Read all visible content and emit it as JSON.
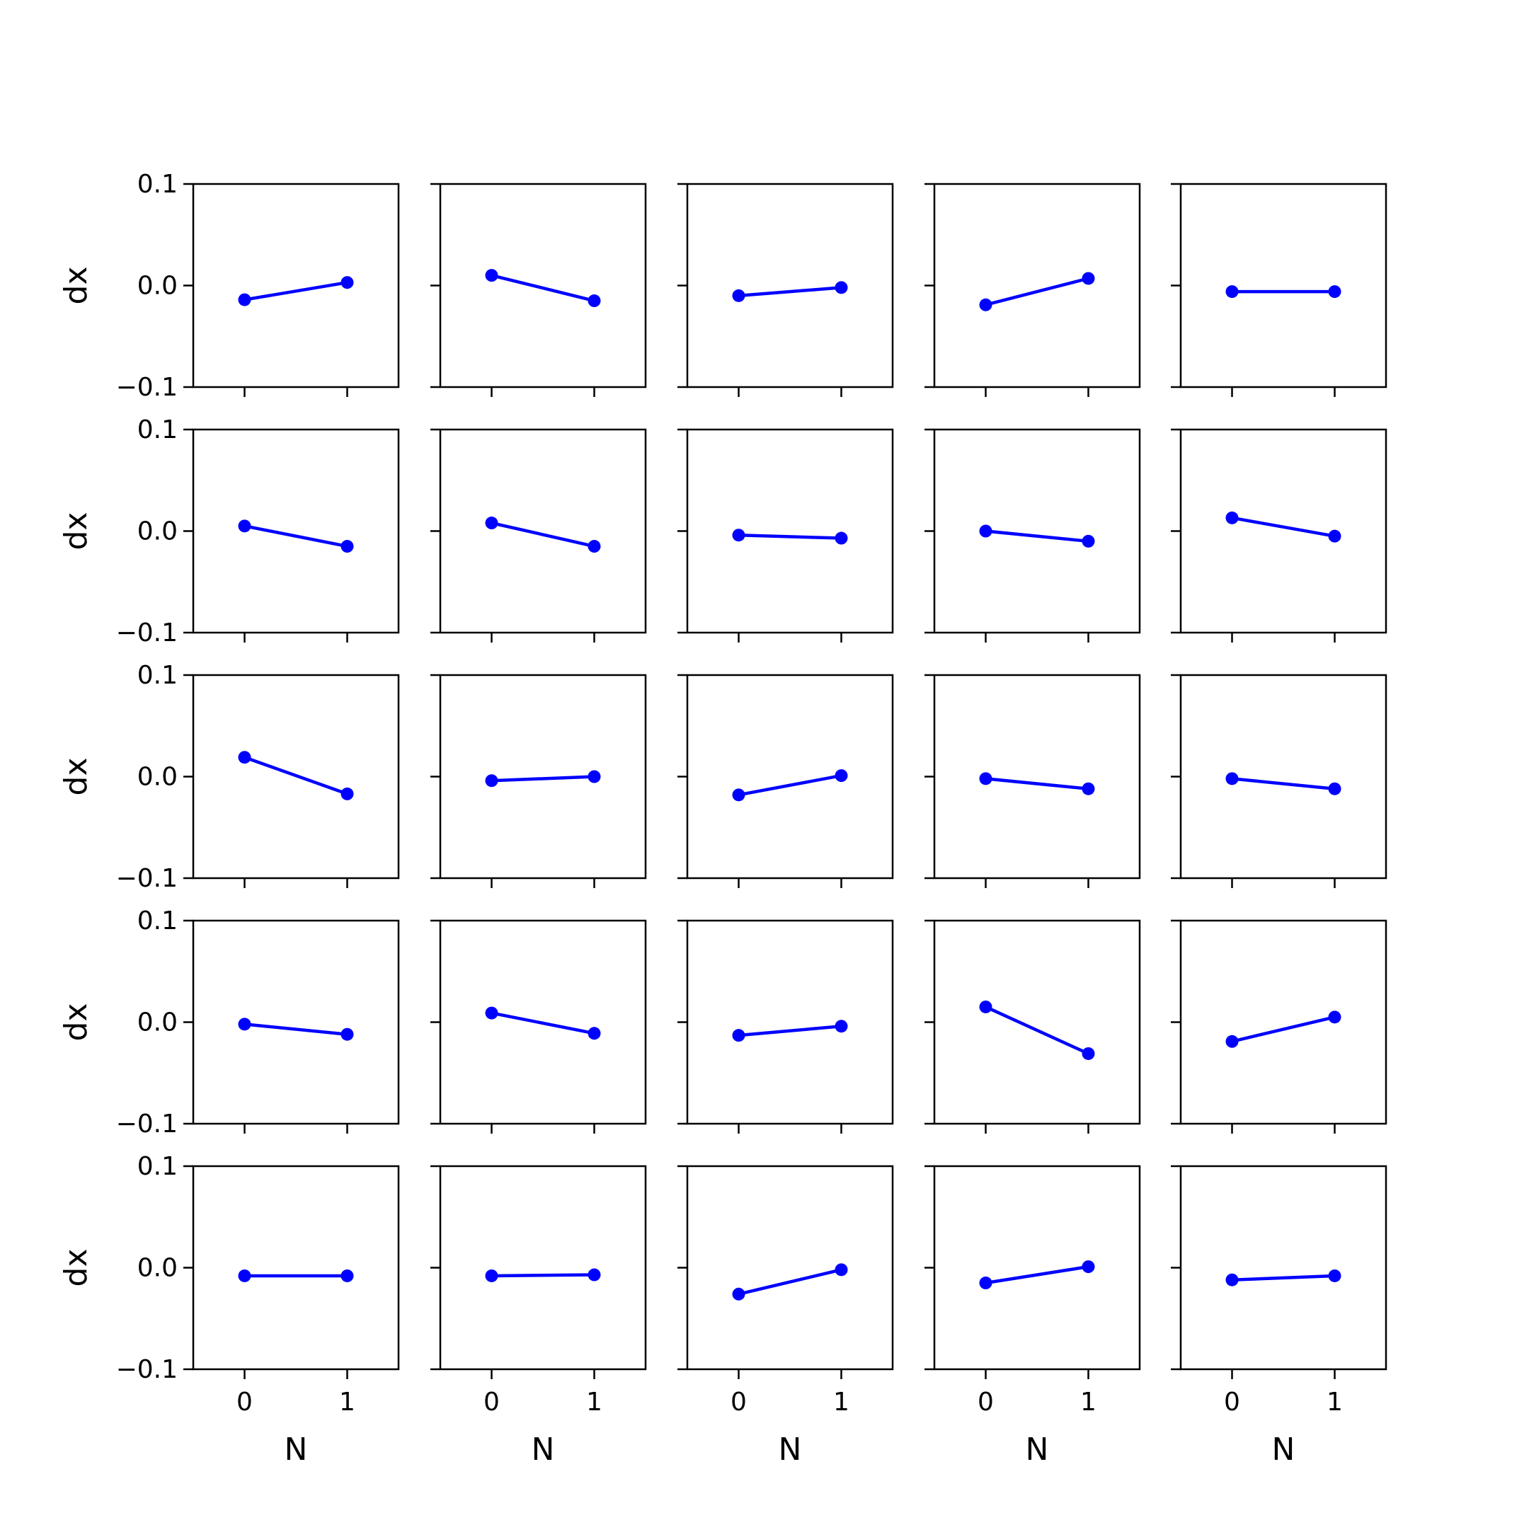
{
  "figure": {
    "rows": 5,
    "cols": 5,
    "line_color": "#0000ff",
    "axis_color": "#000000"
  },
  "shared_axes": {
    "xlabel": "N",
    "ylabel": "dx",
    "xticks": [
      0,
      1
    ],
    "xtick_labels": [
      "0",
      "1"
    ],
    "yticks": [
      0.1,
      0.0,
      -0.1
    ],
    "ytick_labels": [
      "0.1",
      "0.0",
      "−0.1"
    ],
    "xlim": [
      -0.5,
      1.5
    ],
    "ylim": [
      -0.1,
      0.1
    ]
  },
  "chart_data": [
    {
      "type": "line",
      "x": [
        0,
        1
      ],
      "y": [
        -0.014,
        0.003
      ]
    },
    {
      "type": "line",
      "x": [
        0,
        1
      ],
      "y": [
        0.01,
        -0.015
      ]
    },
    {
      "type": "line",
      "x": [
        0,
        1
      ],
      "y": [
        -0.01,
        -0.002
      ]
    },
    {
      "type": "line",
      "x": [
        0,
        1
      ],
      "y": [
        -0.019,
        0.007
      ]
    },
    {
      "type": "line",
      "x": [
        0,
        1
      ],
      "y": [
        -0.006,
        -0.006
      ]
    },
    {
      "type": "line",
      "x": [
        0,
        1
      ],
      "y": [
        0.005,
        -0.015
      ]
    },
    {
      "type": "line",
      "x": [
        0,
        1
      ],
      "y": [
        0.008,
        -0.015
      ]
    },
    {
      "type": "line",
      "x": [
        0,
        1
      ],
      "y": [
        -0.004,
        -0.007
      ]
    },
    {
      "type": "line",
      "x": [
        0,
        1
      ],
      "y": [
        0.0,
        -0.01
      ]
    },
    {
      "type": "line",
      "x": [
        0,
        1
      ],
      "y": [
        0.013,
        -0.005
      ]
    },
    {
      "type": "line",
      "x": [
        0,
        1
      ],
      "y": [
        0.019,
        -0.017
      ]
    },
    {
      "type": "line",
      "x": [
        0,
        1
      ],
      "y": [
        -0.004,
        0.0
      ]
    },
    {
      "type": "line",
      "x": [
        0,
        1
      ],
      "y": [
        -0.018,
        0.001
      ]
    },
    {
      "type": "line",
      "x": [
        0,
        1
      ],
      "y": [
        -0.002,
        -0.012
      ]
    },
    {
      "type": "line",
      "x": [
        0,
        1
      ],
      "y": [
        -0.002,
        -0.012
      ]
    },
    {
      "type": "line",
      "x": [
        0,
        1
      ],
      "y": [
        -0.002,
        -0.012
      ]
    },
    {
      "type": "line",
      "x": [
        0,
        1
      ],
      "y": [
        0.009,
        -0.011
      ]
    },
    {
      "type": "line",
      "x": [
        0,
        1
      ],
      "y": [
        -0.013,
        -0.004
      ]
    },
    {
      "type": "line",
      "x": [
        0,
        1
      ],
      "y": [
        0.015,
        -0.031
      ]
    },
    {
      "type": "line",
      "x": [
        0,
        1
      ],
      "y": [
        -0.019,
        0.005
      ]
    },
    {
      "type": "line",
      "x": [
        0,
        1
      ],
      "y": [
        -0.008,
        -0.008
      ]
    },
    {
      "type": "line",
      "x": [
        0,
        1
      ],
      "y": [
        -0.008,
        -0.007
      ]
    },
    {
      "type": "line",
      "x": [
        0,
        1
      ],
      "y": [
        -0.026,
        -0.002
      ]
    },
    {
      "type": "line",
      "x": [
        0,
        1
      ],
      "y": [
        -0.015,
        0.001
      ]
    },
    {
      "type": "line",
      "x": [
        0,
        1
      ],
      "y": [
        -0.012,
        -0.008
      ]
    }
  ]
}
